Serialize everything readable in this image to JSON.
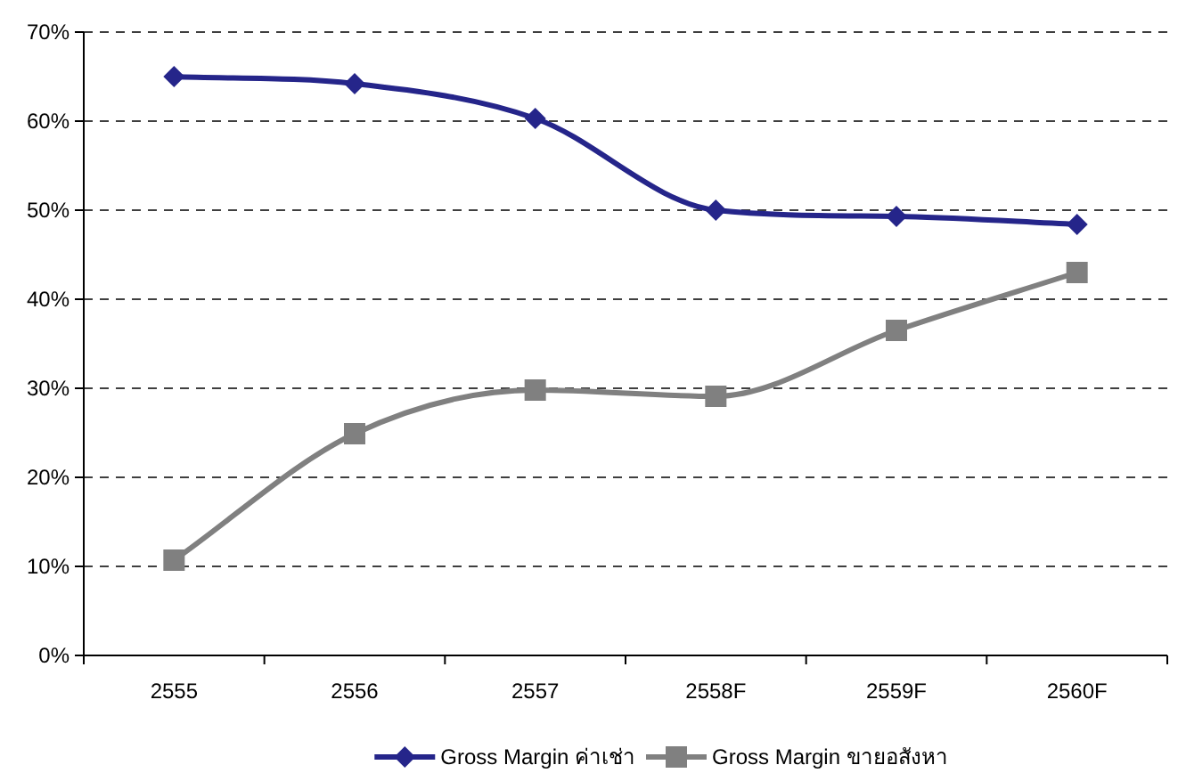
{
  "chart_data": {
    "type": "line",
    "categories": [
      "2555",
      "2556",
      "2557",
      "2558F",
      "2559F",
      "2560F"
    ],
    "series": [
      {
        "name": "Gross Margin ค่าเช่า",
        "color": "#25258a",
        "marker": "diamond",
        "values": [
          65,
          64.2,
          60.3,
          50,
          49.3,
          48.4
        ]
      },
      {
        "name": "Gross Margin ขายอสังหา",
        "color": "#808080",
        "marker": "square",
        "values": [
          10.7,
          24.9,
          29.8,
          29.1,
          36.5,
          43
        ]
      }
    ],
    "ylim": [
      0,
      70
    ],
    "yticks": [
      {
        "value": 0,
        "label": "0%"
      },
      {
        "value": 10,
        "label": "10%"
      },
      {
        "value": 20,
        "label": "20%"
      },
      {
        "value": 30,
        "label": "30%"
      },
      {
        "value": 40,
        "label": "40%"
      },
      {
        "value": 50,
        "label": "50%"
      },
      {
        "value": 60,
        "label": "60%"
      },
      {
        "value": 70,
        "label": "70%"
      }
    ],
    "grid": "y",
    "legend": "bottom",
    "line_style": "solid"
  }
}
